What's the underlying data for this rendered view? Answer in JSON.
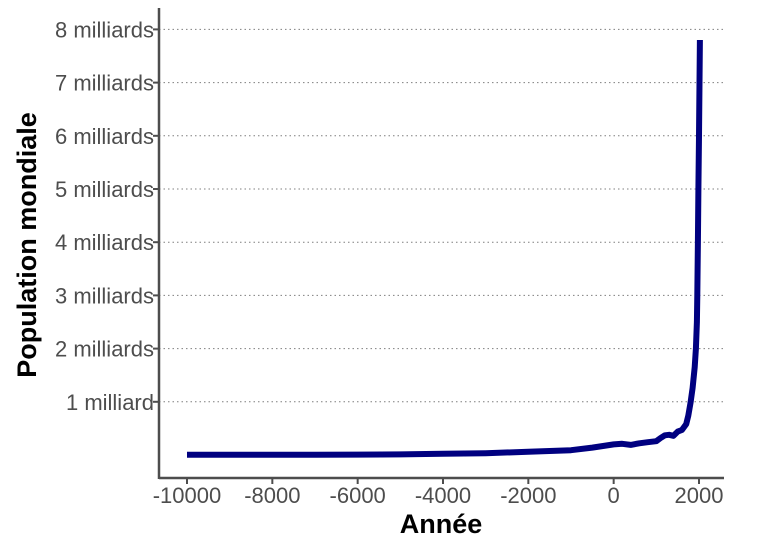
{
  "chart_data": {
    "type": "line",
    "title": "",
    "xlabel": "Année",
    "ylabel": "Population mondiale",
    "xlim": [
      -10000,
      2300
    ],
    "ylim": [
      -0.5,
      8.3
    ],
    "x_ticks": [
      -10000,
      -8000,
      -6000,
      -4000,
      -2000,
      0,
      2000
    ],
    "x_tick_labels": [
      "-10000",
      "-8000",
      "-6000",
      "-4000",
      "-2000",
      "0",
      "2000"
    ],
    "y_ticks": [
      1,
      2,
      3,
      4,
      5,
      6,
      7,
      8
    ],
    "y_tick_labels": [
      "1 milliard",
      "2 milliards",
      "3 milliards",
      "4 milliards",
      "5 milliards",
      "6 milliards",
      "7 milliards",
      "8 milliards"
    ],
    "grid": "horizontal dotted",
    "line_color": "#000080",
    "series": [
      {
        "x": [
          -10000,
          -8000,
          -7000,
          -6000,
          -5000,
          -4000,
          -3000,
          -2000,
          -1000,
          -500,
          0,
          200,
          400,
          600,
          800,
          1000,
          1100,
          1200,
          1300,
          1400,
          1500,
          1600,
          1700,
          1750,
          1800,
          1850,
          1900,
          1927,
          1950,
          1960,
          1974,
          1987,
          1999,
          2011,
          2020
        ],
        "y": [
          0.004,
          0.005,
          0.006,
          0.007,
          0.012,
          0.023,
          0.033,
          0.06,
          0.09,
          0.14,
          0.2,
          0.21,
          0.19,
          0.22,
          0.24,
          0.26,
          0.32,
          0.37,
          0.38,
          0.36,
          0.44,
          0.47,
          0.58,
          0.74,
          0.98,
          1.26,
          1.65,
          2.0,
          2.5,
          3.0,
          4.0,
          5.0,
          6.0,
          7.0,
          7.8
        ]
      }
    ]
  }
}
